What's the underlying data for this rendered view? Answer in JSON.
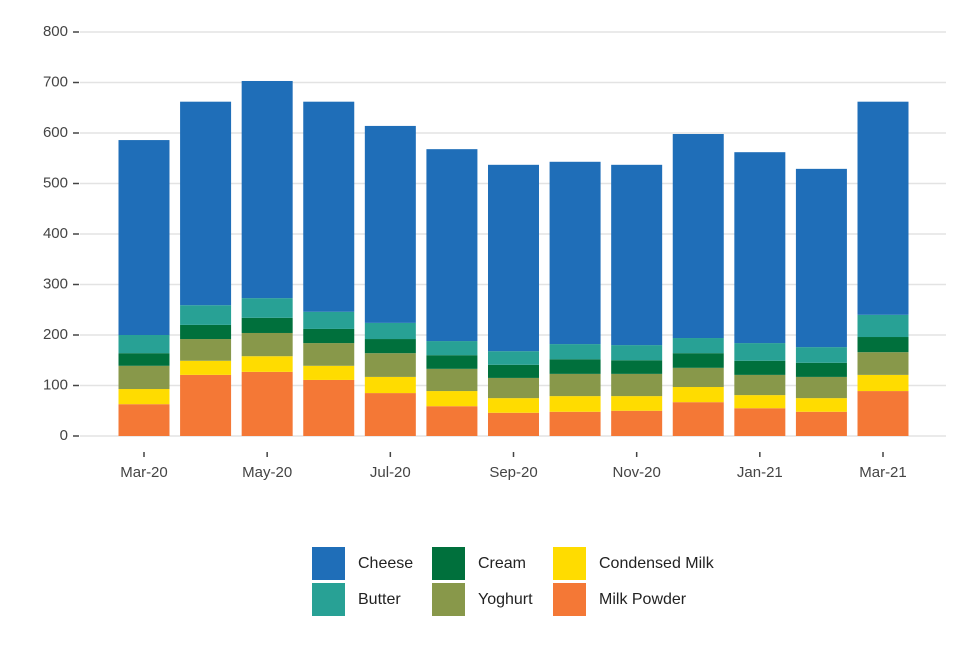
{
  "chart_data": {
    "type": "stacked_bar",
    "categories": [
      "Mar-20",
      null,
      "May-20",
      null,
      "Jul-20",
      null,
      "Sep-20",
      null,
      "Nov-20",
      null,
      "Jan-21",
      null,
      "Mar-21"
    ],
    "series": [
      {
        "name": "Cheese",
        "color": "#1f6eb8",
        "values": [
          386,
          403,
          430,
          416,
          390,
          380,
          369,
          361,
          357,
          404,
          378,
          353,
          422
        ]
      },
      {
        "name": "Butter",
        "color": "#28a195",
        "values": [
          36,
          39,
          39,
          34,
          32,
          28,
          27,
          30,
          30,
          30,
          35,
          31,
          44
        ]
      },
      {
        "name": "Cream",
        "color": "#00703c",
        "values": [
          25,
          28,
          30,
          28,
          28,
          27,
          26,
          29,
          27,
          29,
          28,
          28,
          30
        ]
      },
      {
        "name": "Yoghurt",
        "color": "#88984a",
        "values": [
          46,
          43,
          46,
          45,
          47,
          44,
          40,
          44,
          44,
          38,
          40,
          42,
          45
        ]
      },
      {
        "name": "Condensed Milk",
        "color": "#ffdc00",
        "values": [
          30,
          28,
          31,
          28,
          32,
          30,
          29,
          31,
          29,
          30,
          26,
          27,
          32
        ]
      },
      {
        "name": "Milk Powder",
        "color": "#f47836",
        "values": [
          63,
          121,
          127,
          111,
          85,
          59,
          46,
          48,
          50,
          67,
          55,
          48,
          89
        ]
      }
    ],
    "ylim": [
      0,
      800
    ],
    "yticks": [
      0,
      100,
      200,
      300,
      400,
      500,
      600,
      700,
      800
    ],
    "grid": true
  }
}
